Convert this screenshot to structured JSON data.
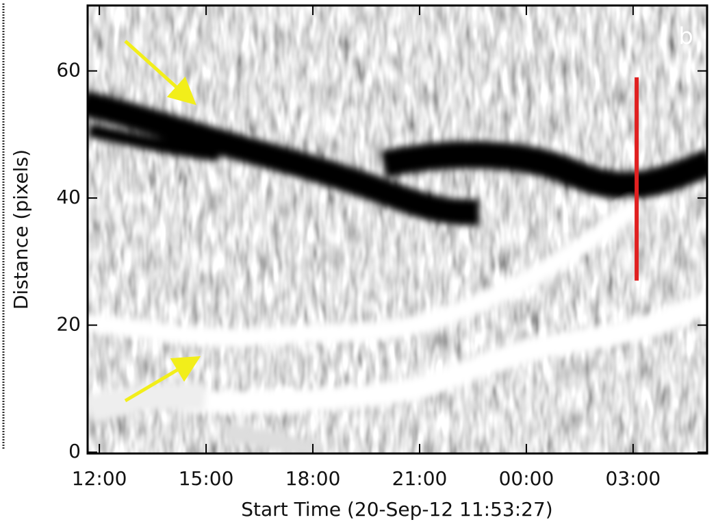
{
  "chart_data": {
    "type": "image",
    "panel_label": "b",
    "xlabel": "Start Time (20-Sep-12 11:53:27)",
    "ylabel": "Distance (pixels)",
    "xlim": [
      11.67,
      29.08
    ],
    "ylim": [
      -0.2,
      70.3
    ],
    "xticks": [
      {
        "value": 12,
        "label": "12:00"
      },
      {
        "value": 15,
        "label": "15:00"
      },
      {
        "value": 18,
        "label": "18:00"
      },
      {
        "value": 21,
        "label": "21:00"
      },
      {
        "value": 24,
        "label": "00:00"
      },
      {
        "value": 27,
        "label": "03:00"
      }
    ],
    "yticks": [
      0,
      20,
      40,
      60
    ],
    "marker_line": {
      "x": 27.1,
      "y": [
        27,
        59
      ],
      "color": "#e02020"
    }
  }
}
